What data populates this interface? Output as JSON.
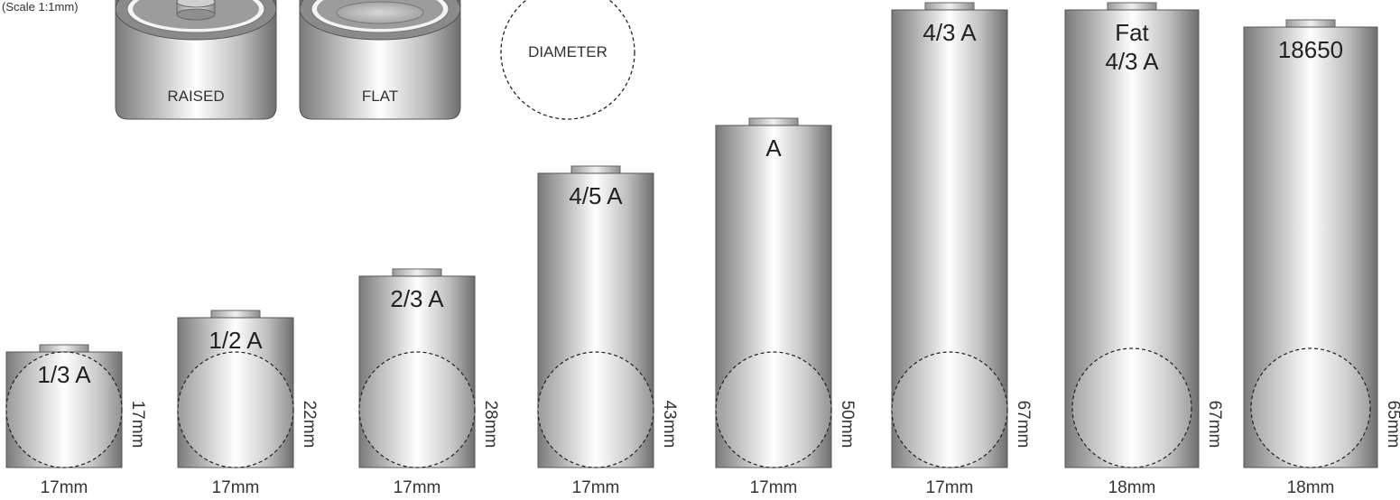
{
  "scale_note": "(Scale 1:1mm)",
  "terminals": {
    "raised_label": "RAISED",
    "flat_label": "FLAT",
    "diameter_label": "DIAMETER"
  },
  "cells": [
    {
      "name_lines": [
        "1/3 A"
      ],
      "height": "17mm",
      "width": "17mm"
    },
    {
      "name_lines": [
        "1/2 A"
      ],
      "height": "22mm",
      "width": "17mm"
    },
    {
      "name_lines": [
        "2/3 A"
      ],
      "height": "28mm",
      "width": "17mm"
    },
    {
      "name_lines": [
        "4/5 A"
      ],
      "height": "43mm",
      "width": "17mm"
    },
    {
      "name_lines": [
        "A"
      ],
      "height": "50mm",
      "width": "17mm"
    },
    {
      "name_lines": [
        "4/3 A"
      ],
      "height": "67mm",
      "width": "17mm"
    },
    {
      "name_lines": [
        "Fat",
        "4/3 A"
      ],
      "height": "67mm",
      "width": "18mm"
    },
    {
      "name_lines": [
        "18650"
      ],
      "height": "65mm",
      "width": "18mm"
    }
  ]
}
